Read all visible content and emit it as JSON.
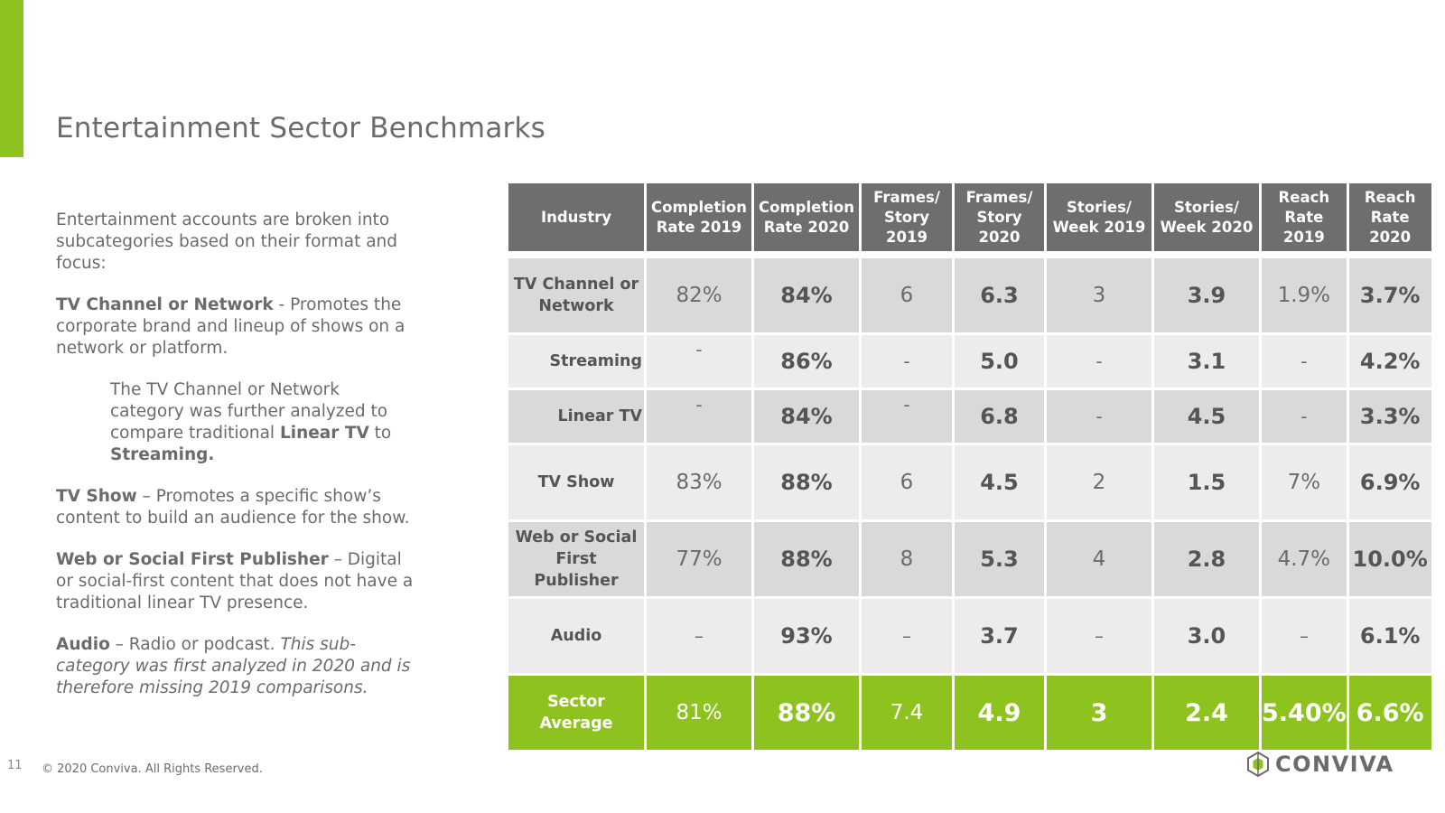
{
  "title": "Entertainment Sector Benchmarks",
  "description": {
    "intro": "Entertainment accounts are broken into subcategories based on their format and focus:",
    "tv_channel": {
      "term": "TV Channel or Network",
      "text": " - Promotes the corporate brand and lineup of shows on a network or platform."
    },
    "further": {
      "text_before": "The TV Channel or Network category was further analyzed to compare traditional ",
      "bold1": "Linear TV",
      "mid": " to ",
      "bold2": "Streaming."
    },
    "tv_show": {
      "term": "TV Show",
      "text": " – Promotes a specific show’s content to build an audience for the show."
    },
    "web_social": {
      "term": "Web or Social First Publisher",
      "text": " – Digital or social-first content that does not have a traditional linear TV presence."
    },
    "audio": {
      "term": "Audio",
      "text": " – Radio or podcast. ",
      "italic": "This sub-category was first analyzed in 2020 and is therefore missing 2019 comparisons."
    }
  },
  "table": {
    "headers": [
      "Industry",
      "Completion Rate 2019",
      "Completion Rate 2020",
      "Frames/ Story 2019",
      "Frames/ Story 2020",
      "Stories/ Week 2019",
      "Stories/ Week 2020",
      "Reach Rate 2019",
      "Reach Rate 2020"
    ],
    "rows": [
      {
        "industry": "TV Channel or Network",
        "values": [
          "82%",
          "84%",
          "6",
          "6.3",
          "3",
          "3.9",
          "1.9%",
          "3.7%"
        ]
      },
      {
        "industry": "Streaming",
        "values": [
          "-",
          "86%",
          "-",
          "5.0",
          "-",
          "3.1",
          "-",
          "4.2%"
        ]
      },
      {
        "industry": "Linear TV",
        "values": [
          "-",
          "84%",
          "-",
          "6.8",
          "-",
          "4.5",
          "-",
          "3.3%"
        ]
      },
      {
        "industry": "TV Show",
        "values": [
          "83%",
          "88%",
          "6",
          "4.5",
          "2",
          "1.5",
          "7%",
          "6.9%"
        ]
      },
      {
        "industry": "Web or Social First Publisher",
        "values": [
          "77%",
          "88%",
          "8",
          "5.3",
          "4",
          "2.8",
          "4.7%",
          "10.0%"
        ]
      },
      {
        "industry": "Audio",
        "values": [
          "–",
          "93%",
          "–",
          "3.7",
          "–",
          "3.0",
          "–",
          "6.1%"
        ]
      }
    ],
    "average": {
      "industry": "Sector Average",
      "values": [
        "81%",
        "88%",
        "7.4",
        "4.9",
        "3",
        "2.4",
        "5.40%",
        "6.6%"
      ]
    }
  },
  "footer": {
    "page_number": "11",
    "copyright": "© 2020 Conviva. All Rights Reserved.",
    "logo_text": "CONVIVA"
  },
  "colors": {
    "accent": "#8dc21f",
    "header_bg": "#6d6e70",
    "row_dark": "#d9d9d9",
    "row_light": "#ececec",
    "text": "#6b6b6b"
  }
}
